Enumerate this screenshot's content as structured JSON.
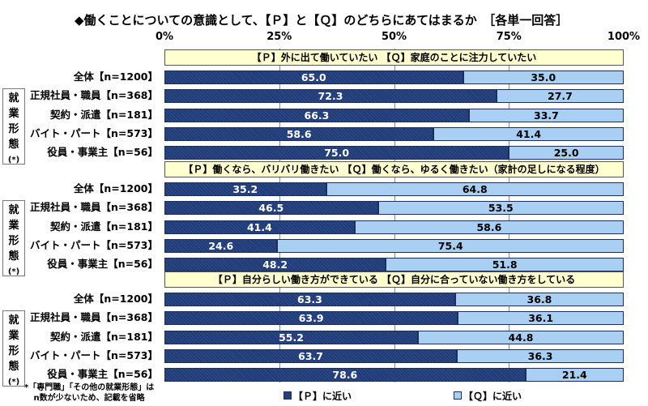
{
  "chart_data": {
    "type": "bar",
    "stacked": true,
    "orientation": "horizontal",
    "title": "◆働くことについての意識として、【Ｐ】と【Ｑ】のどちらにあてはまるか　［各単一回答］",
    "xlim": [
      0,
      100
    ],
    "xticks": [
      "0%",
      "25%",
      "50%",
      "75%",
      "100%"
    ],
    "colors": {
      "P": "#1f3b78",
      "Q": "#a9d0f2",
      "header": "#ffffd0"
    },
    "side_label": [
      "就",
      "業",
      "形",
      "態",
      "(*)"
    ],
    "groups": [
      {
        "header": "【Ｐ】外に出て働いていたい 【Ｑ】家庭のことに注力していたい",
        "rows": [
          {
            "label": "全体【n=1200】",
            "P": 65.0,
            "Q": 35.0
          },
          {
            "label": "正規社員・職員【n=368】",
            "P": 72.3,
            "Q": 27.7
          },
          {
            "label": "契約・派遣【n=181】",
            "P": 66.3,
            "Q": 33.7
          },
          {
            "label": "バイト・パート【n=573】",
            "P": 58.6,
            "Q": 41.4
          },
          {
            "label": "役員・事業主【n=56】",
            "P": 75.0,
            "Q": 25.0
          }
        ]
      },
      {
        "header": "【Ｐ】働くなら、バリバリ働きたい 【Ｑ】働くなら、ゆるく働きたい（家計の足しになる程度）",
        "rows": [
          {
            "label": "全体【n=1200】",
            "P": 35.2,
            "Q": 64.8
          },
          {
            "label": "正規社員・職員【n=368】",
            "P": 46.5,
            "Q": 53.5
          },
          {
            "label": "契約・派遣【n=181】",
            "P": 41.4,
            "Q": 58.6
          },
          {
            "label": "バイト・パート【n=573】",
            "P": 24.6,
            "Q": 75.4
          },
          {
            "label": "役員・事業主【n=56】",
            "P": 48.2,
            "Q": 51.8
          }
        ]
      },
      {
        "header": "【Ｐ】自分らしい働き方ができている 【Ｑ】自分に合っていない働き方をしている",
        "rows": [
          {
            "label": "全体【n=1200】",
            "P": 63.3,
            "Q": 36.8
          },
          {
            "label": "正規社員・職員【n=368】",
            "P": 63.9,
            "Q": 36.1
          },
          {
            "label": "契約・派遣【n=181】",
            "P": 55.2,
            "Q": 44.8
          },
          {
            "label": "バイト・パート【n=573】",
            "P": 63.7,
            "Q": 36.3
          },
          {
            "label": "役員・事業主【n=56】",
            "P": 78.6,
            "Q": 21.4
          }
        ]
      }
    ],
    "legend": {
      "P": "【Ｐ】に近い",
      "Q": "【Ｑ】に近い",
      "placement": "bottom"
    },
    "note": [
      "*「専門職」「その他の就業形態」は",
      "n数が少ないため、記載を省略"
    ]
  }
}
